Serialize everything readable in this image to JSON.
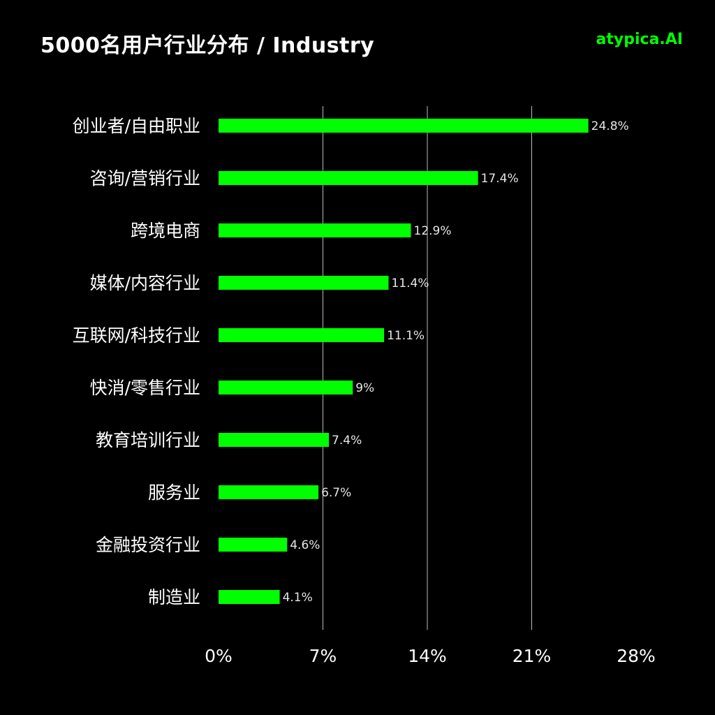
{
  "header": {
    "title": "5000名用户行业分布 / Industry",
    "brand": "atypica.AI"
  },
  "colors": {
    "background": "#000000",
    "bar": "#00ff00",
    "grid": "#bbbbbb",
    "text": "#ffffff",
    "brand": "#00ff00"
  },
  "chart_data": {
    "type": "bar",
    "orientation": "horizontal",
    "title": "5000名用户行业分布 / Industry",
    "xlabel": "",
    "ylabel": "",
    "categories": [
      "创业者/自由职业",
      "咨询/营销行业",
      "跨境电商",
      "媒体/内容行业",
      "互联网/科技行业",
      "快消/零售行业",
      "教育培训行业",
      "服务业",
      "金融投资行业",
      "制造业"
    ],
    "values": [
      24.8,
      17.4,
      12.9,
      11.4,
      11.1,
      9,
      7.4,
      6.7,
      4.6,
      4.1
    ],
    "value_labels": [
      "24.8%",
      "17.4%",
      "12.9%",
      "11.4%",
      "11.1%",
      "9%",
      "7.4%",
      "6.7%",
      "4.6%",
      "4.1%"
    ],
    "xlim": [
      0,
      28
    ],
    "xticks": [
      0,
      7,
      14,
      21,
      28
    ],
    "xtick_labels": [
      "0%",
      "7%",
      "14%",
      "21%",
      "28%"
    ],
    "grid": "vertical",
    "legend": "none"
  }
}
